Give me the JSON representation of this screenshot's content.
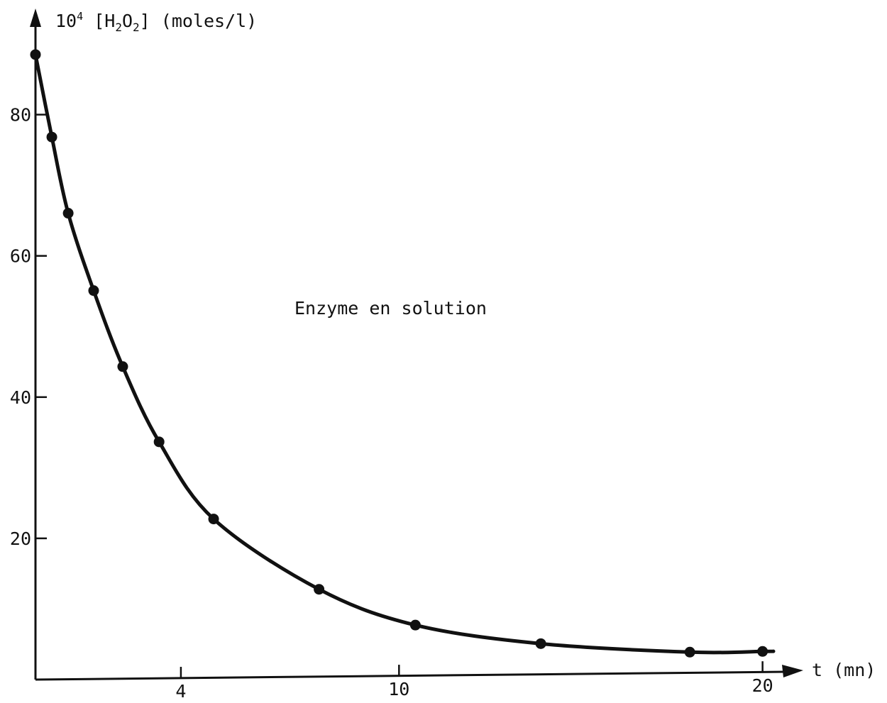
{
  "chart_data": {
    "type": "scatter",
    "title": "",
    "annotation": "Enzyme en solution",
    "ylabel": {
      "prefix": "10",
      "exponent": "4",
      "species": {
        "a": "H",
        "a_sub": "2",
        "b": "O",
        "b_sub": "2"
      },
      "unit": "(moles/l)"
    },
    "xlabel": "t (mn)",
    "xlim": [
      0,
      20.3
    ],
    "ylim": [
      0,
      89
    ],
    "xticks": [
      4,
      10,
      20
    ],
    "yticks": [
      20,
      40,
      60,
      80
    ],
    "grid": false,
    "legend": "none",
    "series": [
      {
        "x": [
          0.0,
          0.45,
          0.9,
          1.6,
          2.4,
          3.4,
          4.9,
          7.8,
          10.45,
          13.9,
          18.0,
          20.0
        ],
        "y": [
          88.5,
          76.8,
          66.0,
          55.0,
          44.2,
          33.5,
          22.5,
          12.4,
          7.2,
          4.4,
          3.0,
          3.0
        ]
      }
    ]
  }
}
